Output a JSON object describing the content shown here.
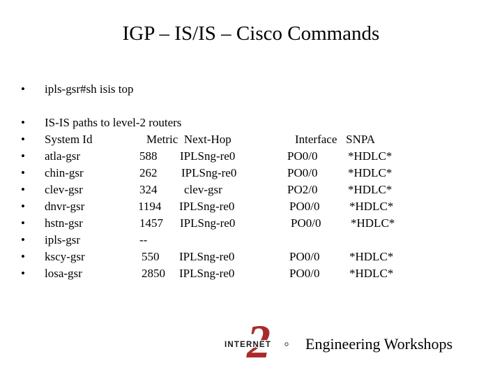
{
  "slide": {
    "title": "IGP – IS/IS – Cisco Commands",
    "command": "ipls-gsr#sh isis top",
    "bullet_glyph": "•"
  },
  "table": {
    "caption": "IS-IS paths to level-2 routers",
    "headers": {
      "system_id": "System Id",
      "metric_nexthop": "Metric  Next-Hop",
      "interface_snpa": "Interface   SNPA"
    },
    "rows": [
      {
        "system": "atla-gsr",
        "metric": "588",
        "next_hop": "IPLSng-re0",
        "interface": "PO0/0",
        "snpa": "*HDLC*"
      },
      {
        "system": "chin-gsr",
        "metric": "262",
        "next_hop": "IPLSng-re0",
        "interface": "PO0/0",
        "snpa": "*HDLC*"
      },
      {
        "system": "clev-gsr",
        "metric": "324",
        "next_hop": "clev-gsr",
        "interface": "PO2/0",
        "snpa": "*HDLC*"
      },
      {
        "system": "dnvr-gsr",
        "metric": "1194",
        "next_hop": "IPLSng-re0",
        "interface": "PO0/0",
        "snpa": "*HDLC*"
      },
      {
        "system": "hstn-gsr",
        "metric": "1457",
        "next_hop": "IPLSng-re0",
        "interface": "PO0/0",
        "snpa": "*HDLC*"
      },
      {
        "system": "ipls-gsr",
        "metric": "--",
        "next_hop": "",
        "interface": "",
        "snpa": ""
      },
      {
        "system": "kscy-gsr",
        "metric": "550",
        "next_hop": "IPLSng-re0",
        "interface": "PO0/0",
        "snpa": "*HDLC*"
      },
      {
        "system": "losa-gsr",
        "metric": "2850",
        "next_hop": "IPLSng-re0",
        "interface": "PO0/0",
        "snpa": "*HDLC*"
      }
    ]
  },
  "footer": {
    "logo_text": "INTERNET",
    "logo_numeral": "2",
    "text": "Engineering Workshops",
    "colors": {
      "logo_numeral": "#a82a2a",
      "logo_text": "#1a1a1a"
    }
  }
}
